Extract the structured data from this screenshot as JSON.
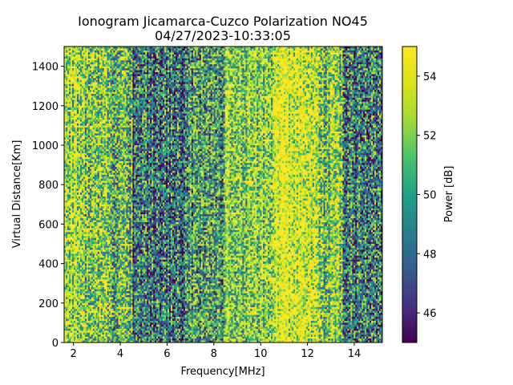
{
  "chart_data": {
    "type": "heatmap",
    "title": "Ionogram Jicamarca-Cuzco Polarization NO45",
    "subtitle": "04/27/2023-10:33:05",
    "xlabel": "Frequency[MHz]",
    "ylabel": "Virtual Distance[Km]",
    "xlim": [
      1.6,
      15.2
    ],
    "ylim": [
      0,
      1500
    ],
    "x_ticks": [
      2,
      4,
      6,
      8,
      10,
      12,
      14
    ],
    "y_ticks": [
      0,
      200,
      400,
      600,
      800,
      1000,
      1200,
      1400
    ],
    "colorbar": {
      "label": "Power [dB]",
      "range": [
        45,
        55
      ],
      "ticks": [
        46,
        48,
        50,
        52,
        54
      ],
      "colormap": "viridis"
    },
    "grid": false,
    "frequency_band_mean_power_db": [
      {
        "band": [
          1.6,
          2.5
        ],
        "power": 53.5
      },
      {
        "band": [
          2.5,
          3.5
        ],
        "power": 52.0
      },
      {
        "band": [
          3.5,
          4.5
        ],
        "power": 51.0
      },
      {
        "band": [
          4.5,
          7.0
        ],
        "power": 48.5
      },
      {
        "band": [
          7.0,
          8.5
        ],
        "power": 50.0
      },
      {
        "band": [
          8.5,
          10.5
        ],
        "power": 53.0
      },
      {
        "band": [
          10.5,
          12.5
        ],
        "power": 55.0
      },
      {
        "band": [
          12.5,
          13.5
        ],
        "power": 52.0
      },
      {
        "band": [
          13.5,
          15.2
        ],
        "power": 49.0
      }
    ]
  }
}
